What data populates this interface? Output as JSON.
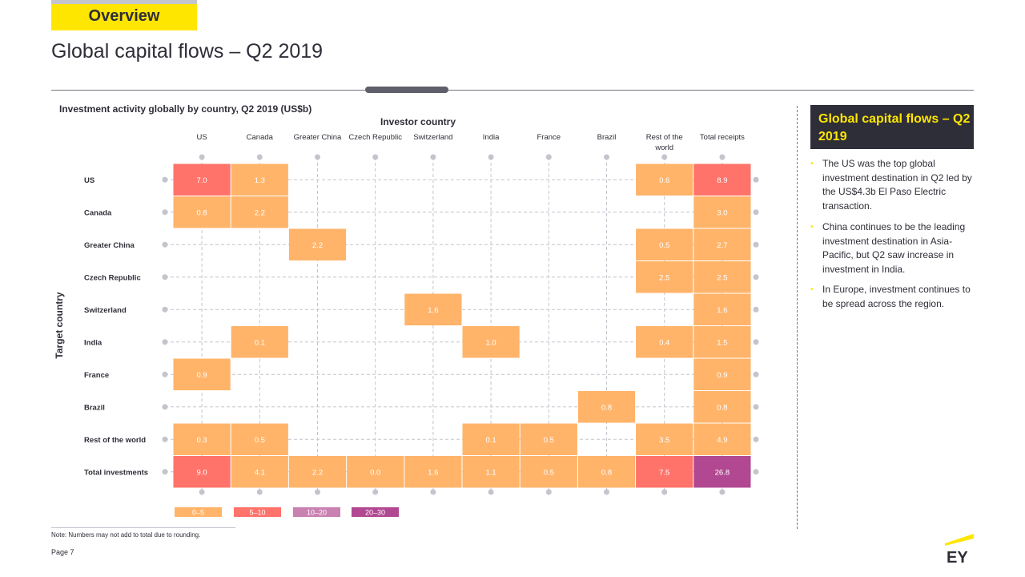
{
  "header": {
    "tag": "Overview",
    "title": "Global capital flows – Q2 2019"
  },
  "chart_data": {
    "type": "heatmap",
    "title": "Investment activity globally by country, Q2 2019 (US$b)",
    "xlabel": "Investor country",
    "ylabel": "Target country",
    "columns": [
      "US",
      "Canada",
      "Greater China",
      "Czech Republic",
      "Switzerland",
      "India",
      "France",
      "Brazil",
      "Rest of the world",
      "Total  receipts"
    ],
    "rows": [
      "US",
      "Canada",
      "Greater China",
      "Czech Republic",
      "Switzerland",
      "India",
      "France",
      "Brazil",
      "Rest of the world",
      "Total investments"
    ],
    "values": [
      [
        7.0,
        1.3,
        null,
        null,
        null,
        null,
        null,
        null,
        0.6,
        8.9
      ],
      [
        0.8,
        2.2,
        null,
        null,
        null,
        null,
        null,
        null,
        null,
        3.0
      ],
      [
        null,
        null,
        2.2,
        null,
        null,
        null,
        null,
        null,
        0.5,
        2.7
      ],
      [
        null,
        null,
        null,
        null,
        null,
        null,
        null,
        null,
        2.5,
        2.5
      ],
      [
        null,
        null,
        null,
        null,
        1.6,
        null,
        null,
        null,
        null,
        1.6
      ],
      [
        null,
        0.1,
        null,
        null,
        null,
        1.0,
        null,
        null,
        0.4,
        1.5
      ],
      [
        0.9,
        null,
        null,
        null,
        null,
        null,
        null,
        null,
        null,
        0.9
      ],
      [
        null,
        null,
        null,
        null,
        null,
        null,
        null,
        0.8,
        null,
        0.8
      ],
      [
        0.3,
        0.5,
        null,
        null,
        null,
        0.1,
        0.5,
        null,
        3.5,
        4.9
      ],
      [
        9.0,
        4.1,
        2.2,
        0.0,
        1.6,
        1.1,
        0.5,
        0.8,
        7.5,
        26.8
      ]
    ],
    "legend": [
      {
        "label": "0–5",
        "min": 0,
        "max": 5,
        "color": "#ffb46a"
      },
      {
        "label": "5–10",
        "min": 5,
        "max": 10,
        "color": "#ff736a"
      },
      {
        "label": "10–20",
        "min": 10,
        "max": 20,
        "color": "#c981b2"
      },
      {
        "label": "20–30",
        "min": 20,
        "max": 30,
        "color": "#b14891"
      }
    ]
  },
  "sidebar": {
    "title": "Global capital flows – Q2 2019",
    "bullets": [
      "The US was the top global investment destination in Q2 led by the US$4.3b El Paso Electric transaction.",
      "China continues to be the leading investment destination in Asia-Pacific, but Q2 saw increase in investment in India.",
      "In Europe, investment continues to be spread across the region."
    ]
  },
  "footer": {
    "note": "Note: Numbers may not add to total due to rounding.",
    "page": "Page 7"
  },
  "colors": {
    "ey_yellow": "#ffe600",
    "ey_dark": "#2e2e38"
  }
}
